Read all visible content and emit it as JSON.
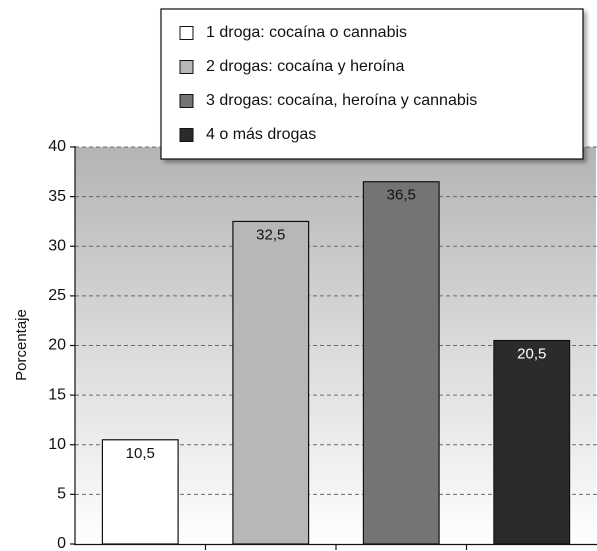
{
  "chart_data": {
    "type": "bar",
    "ylabel": "Porcentaje",
    "xlabel": "",
    "ylim": [
      0,
      40
    ],
    "yticks": [
      0,
      5,
      10,
      15,
      20,
      25,
      30,
      35,
      40
    ],
    "grid": true,
    "legend_position": "top-right",
    "categories": [
      "1 droga: cocaína o cannabis",
      "2 drogas: cocaína y heroína",
      "3 drogas: cocaína, heroína y cannabis",
      "4 o más drogas"
    ],
    "values": [
      10.5,
      32.5,
      36.5,
      20.5
    ],
    "value_labels": [
      "10,5",
      "32,5",
      "36,5",
      "20,5"
    ],
    "colors": [
      "#ffffff",
      "#b7b7b7",
      "#747474",
      "#2b2b2b"
    ],
    "label_colors": [
      "#111111",
      "#111111",
      "#111111",
      "#ffffff"
    ]
  }
}
